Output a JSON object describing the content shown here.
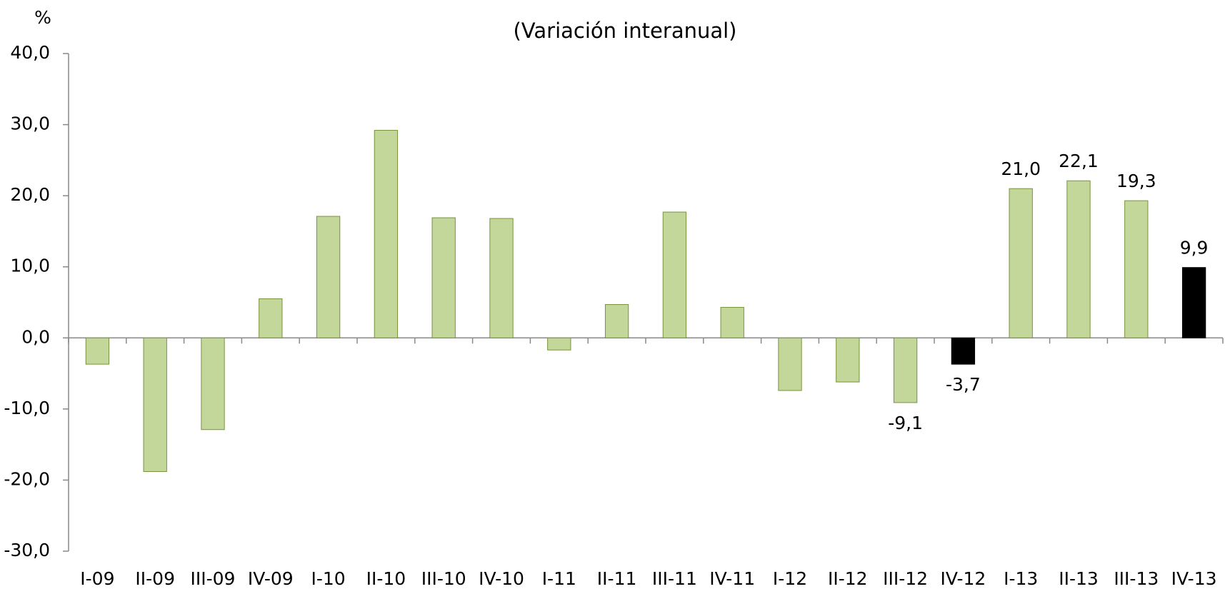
{
  "chart_data": {
    "type": "bar",
    "title": "(Variación interanual)",
    "y_label": "%",
    "categories": [
      "I-09",
      "II-09",
      "III-09",
      "IV-09",
      "I-10",
      "II-10",
      "III-10",
      "IV-10",
      "I-11",
      "II-11",
      "III-11",
      "IV-11",
      "I-12",
      "II-12",
      "III-12",
      "IV-12",
      "I-13",
      "II-13",
      "III-13",
      "IV-13"
    ],
    "values": [
      -3.7,
      -18.8,
      -12.9,
      5.5,
      17.1,
      29.2,
      16.9,
      16.8,
      -1.7,
      4.7,
      17.7,
      4.3,
      -7.4,
      -6.2,
      -9.1,
      -3.7,
      21.0,
      22.1,
      19.3,
      9.9
    ],
    "value_labels": [
      null,
      null,
      null,
      null,
      null,
      null,
      null,
      null,
      null,
      null,
      null,
      null,
      null,
      null,
      "-9,1",
      "-3,7",
      "21,0",
      "22,1",
      "19,3",
      "9,9"
    ],
    "colors": [
      "#c4d79b",
      "#c4d79b",
      "#c4d79b",
      "#c4d79b",
      "#c4d79b",
      "#c4d79b",
      "#c4d79b",
      "#c4d79b",
      "#c4d79b",
      "#c4d79b",
      "#c4d79b",
      "#c4d79b",
      "#c4d79b",
      "#c4d79b",
      "#c4d79b",
      "#000000",
      "#c4d79b",
      "#c4d79b",
      "#c4d79b",
      "#000000"
    ],
    "ylim": [
      -30,
      40
    ],
    "yticks": [
      {
        "value": -30,
        "label": "-30,0"
      },
      {
        "value": -20,
        "label": "-20,0"
      },
      {
        "value": -10,
        "label": "-10,0"
      },
      {
        "value": 0,
        "label": "0,0"
      },
      {
        "value": 10,
        "label": "10,0"
      },
      {
        "value": 20,
        "label": "20,0"
      },
      {
        "value": 30,
        "label": "30,0"
      },
      {
        "value": 40,
        "label": "40,0"
      }
    ],
    "grid": false
  }
}
